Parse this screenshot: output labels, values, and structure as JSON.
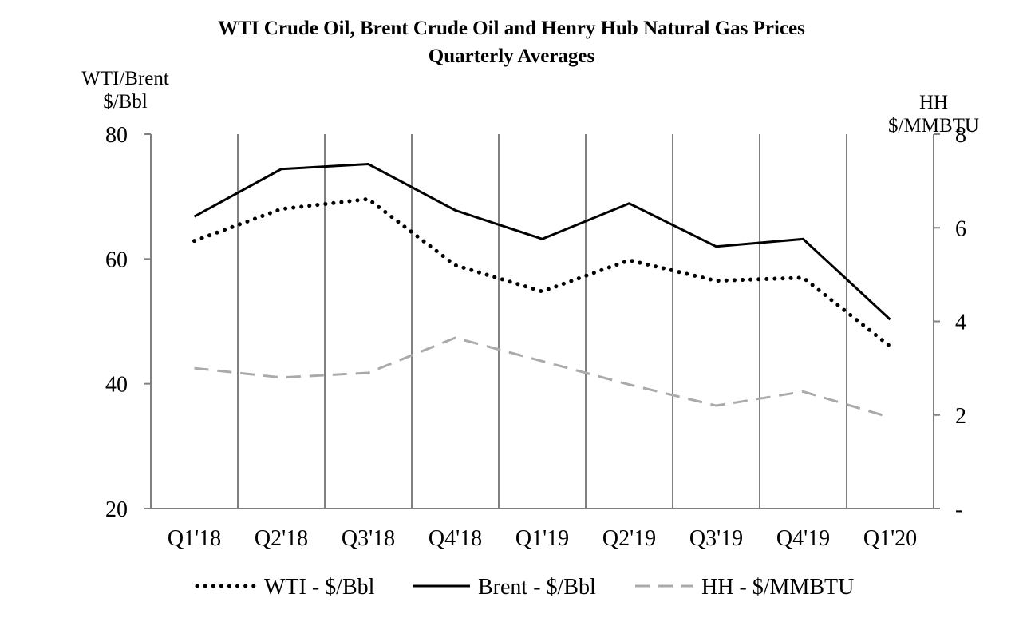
{
  "chart_data": {
    "type": "line",
    "title": "WTI Crude Oil, Brent Crude Oil and Henry Hub Natural Gas Prices",
    "subtitle": "Quarterly Averages",
    "ylabel_left": [
      "WTI/Brent",
      "$/Bbl"
    ],
    "ylabel_right": [
      "HH",
      "$/MMBTU"
    ],
    "categories": [
      "Q1'18",
      "Q2'18",
      "Q3'18",
      "Q4'18",
      "Q1'19",
      "Q2'19",
      "Q3'19",
      "Q4'19",
      "Q1'20"
    ],
    "ylim_left": [
      20,
      80
    ],
    "yticks_left": [
      {
        "value": 20,
        "label": "20"
      },
      {
        "value": 40,
        "label": "40"
      },
      {
        "value": 60,
        "label": "60"
      },
      {
        "value": 80,
        "label": "80"
      }
    ],
    "ylim_right": [
      0,
      8
    ],
    "yticks_right": [
      {
        "value": 0,
        "label": "-"
      },
      {
        "value": 2,
        "label": "2"
      },
      {
        "value": 4,
        "label": "4"
      },
      {
        "value": 6,
        "label": "6"
      },
      {
        "value": 8,
        "label": "8"
      }
    ],
    "grid": "vertical",
    "legend_position": "bottom",
    "series": [
      {
        "name": "WTI - $/Bbl",
        "axis": "left",
        "style": "dotted",
        "color": "#000000",
        "values": [
          62.9,
          68.0,
          69.6,
          59.0,
          54.8,
          59.8,
          56.5,
          57.0,
          46.0
        ]
      },
      {
        "name": "Brent - $/Bbl",
        "axis": "left",
        "style": "solid",
        "color": "#000000",
        "values": [
          66.8,
          74.4,
          75.2,
          67.8,
          63.2,
          68.9,
          62.0,
          63.2,
          50.3
        ]
      },
      {
        "name": "HH - $/MMBTU",
        "axis": "right",
        "style": "dashed",
        "color": "#aaaaaa",
        "values": [
          3.0,
          2.8,
          2.9,
          3.65,
          3.15,
          2.65,
          2.2,
          2.5,
          1.95
        ]
      }
    ]
  }
}
